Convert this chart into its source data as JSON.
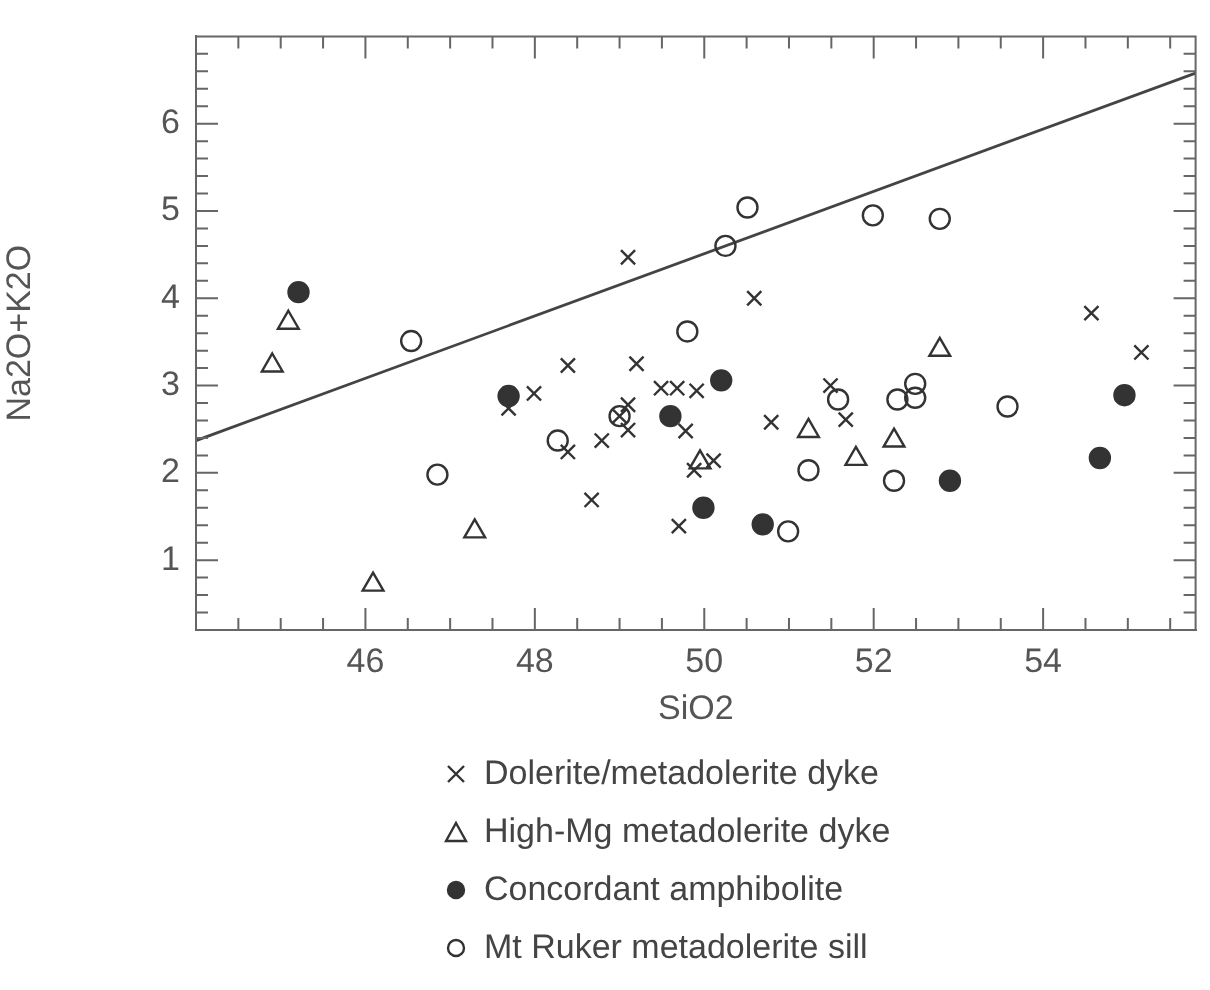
{
  "chart_data": {
    "type": "scatter",
    "xlabel": "SiO2",
    "ylabel": "Na2O+K2O",
    "xlim": [
      44,
      55.8
    ],
    "ylim": [
      0.2,
      7
    ],
    "xticks": [
      {
        "value": 44.5,
        "label": null
      },
      {
        "value": 45,
        "label": null
      },
      {
        "value": 45.5,
        "label": null
      },
      46,
      {
        "value": 46.5,
        "label": null
      },
      {
        "value": 47,
        "label": null
      },
      {
        "value": 47.5,
        "label": null
      },
      48,
      {
        "value": 48.5,
        "label": null
      },
      {
        "value": 49,
        "label": null
      },
      {
        "value": 49.5,
        "label": null
      },
      50,
      {
        "value": 50.5,
        "label": null
      },
      {
        "value": 51,
        "label": null
      },
      {
        "value": 51.5,
        "label": null
      },
      52,
      {
        "value": 52.5,
        "label": null
      },
      {
        "value": 53,
        "label": null
      },
      {
        "value": 53.5,
        "label": null
      },
      54,
      {
        "value": 54.5,
        "label": null
      },
      {
        "value": 55,
        "label": null
      },
      {
        "value": 55.5,
        "label": null
      }
    ],
    "yticks": [
      {
        "value": 0.4,
        "label": null
      },
      {
        "value": 0.6,
        "label": null
      },
      {
        "value": 0.8,
        "label": null
      },
      1,
      {
        "value": 1.2,
        "label": null
      },
      {
        "value": 1.4,
        "label": null
      },
      {
        "value": 1.6,
        "label": null
      },
      {
        "value": 1.8,
        "label": null
      },
      2,
      {
        "value": 2.2,
        "label": null
      },
      {
        "value": 2.4,
        "label": null
      },
      {
        "value": 2.6,
        "label": null
      },
      {
        "value": 2.8,
        "label": null
      },
      3,
      {
        "value": 3.2,
        "label": null
      },
      {
        "value": 3.4,
        "label": null
      },
      {
        "value": 3.6,
        "label": null
      },
      {
        "value": 3.8,
        "label": null
      },
      4,
      {
        "value": 4.2,
        "label": null
      },
      {
        "value": 4.4,
        "label": null
      },
      {
        "value": 4.6,
        "label": null
      },
      {
        "value": 4.8,
        "label": null
      },
      5,
      {
        "value": 5.2,
        "label": null
      },
      {
        "value": 5.4,
        "label": null
      },
      {
        "value": 5.6,
        "label": null
      },
      {
        "value": 5.8,
        "label": null
      },
      6,
      {
        "value": 6.2,
        "label": null
      },
      {
        "value": 6.4,
        "label": null
      },
      {
        "value": 6.6,
        "label": null
      },
      {
        "value": 6.8,
        "label": null
      }
    ],
    "grid": false,
    "legend": "bottom",
    "series": [
      {
        "name": "Dolerite/metadolerite dyke",
        "color": "#333333",
        "marker": "cross",
        "x": [
          49.1,
          48.39,
          49.2,
          47.99,
          47.69,
          49.1,
          49.0,
          49.1,
          48.39,
          48.79,
          48.67,
          49.49,
          49.68,
          49.7,
          49.78,
          49.91,
          49.88,
          50.11,
          50.59,
          50.79,
          51.49,
          51.67,
          54.57,
          55.16
        ],
        "values": [
          4.47,
          3.23,
          3.25,
          2.91,
          2.74,
          2.78,
          2.65,
          2.49,
          2.24,
          2.37,
          1.69,
          2.97,
          2.97,
          1.39,
          2.48,
          2.94,
          2.03,
          2.14,
          4.0,
          2.58,
          3.0,
          2.61,
          3.83,
          3.38
        ]
      },
      {
        "name": "High-Mg metadolerite dyke",
        "color": "#333333",
        "marker": "triangle",
        "x": [
          45.09,
          44.9,
          47.29,
          46.09,
          49.95,
          51.23,
          51.79,
          52.24,
          52.78
        ],
        "values": [
          3.72,
          3.23,
          1.33,
          0.72,
          2.12,
          2.48,
          2.16,
          2.37,
          3.41
        ]
      },
      {
        "name": "Concordant amphibolite",
        "color": "#333333",
        "marker": "circle",
        "x": [
          45.21,
          47.69,
          49.6,
          50.2,
          49.99,
          50.69,
          52.9,
          54.67,
          54.96
        ],
        "values": [
          4.07,
          2.88,
          2.65,
          3.06,
          1.6,
          1.41,
          1.91,
          2.17,
          2.89
        ]
      },
      {
        "name": "Mt Ruker metadolerite sill",
        "color": "#333333",
        "marker": "circle",
        "x": [
          46.54,
          46.85,
          48.27,
          49.0,
          50.51,
          50.25,
          51.99,
          52.78,
          49.8,
          51.58,
          52.28,
          52.49,
          52.49,
          53.58,
          51.23,
          52.24,
          50.99
        ],
        "values": [
          3.51,
          1.98,
          2.37,
          2.65,
          5.04,
          4.6,
          4.95,
          4.91,
          3.62,
          2.84,
          2.84,
          3.02,
          2.86,
          2.76,
          2.03,
          1.91,
          1.33
        ]
      },
      {
        "type": "line",
        "color": "#444444",
        "marker": "none",
        "x": [
          44,
          55.8
        ],
        "values": [
          2.37,
          6.58
        ]
      }
    ]
  }
}
